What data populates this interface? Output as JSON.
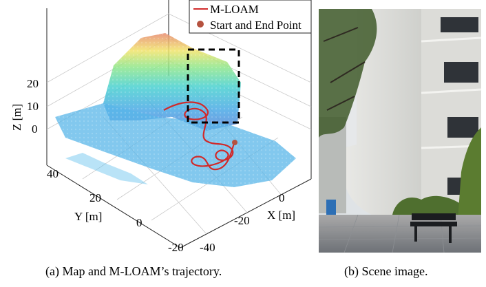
{
  "figure": {
    "panel_a": {
      "legend": {
        "trajectory_label": "M-LOAM",
        "point_label": "Start and End Point"
      },
      "axes": {
        "z_label": "Z [m]",
        "z_ticks": [
          "20",
          "10",
          "0"
        ],
        "y_label": "Y [m]",
        "y_ticks": [
          "40",
          "20",
          "0",
          "-20"
        ],
        "x_label": "X [m]",
        "x_ticks": [
          "0",
          "-20",
          "-40"
        ]
      },
      "caption": "(a) Map and M-LOAM’s trajectory."
    },
    "panel_b": {
      "caption": "(b) Scene image."
    }
  },
  "colors": {
    "trajectory": "#d12a2a",
    "start_end_point": "#b5523f",
    "highlight_box": "#000000"
  }
}
